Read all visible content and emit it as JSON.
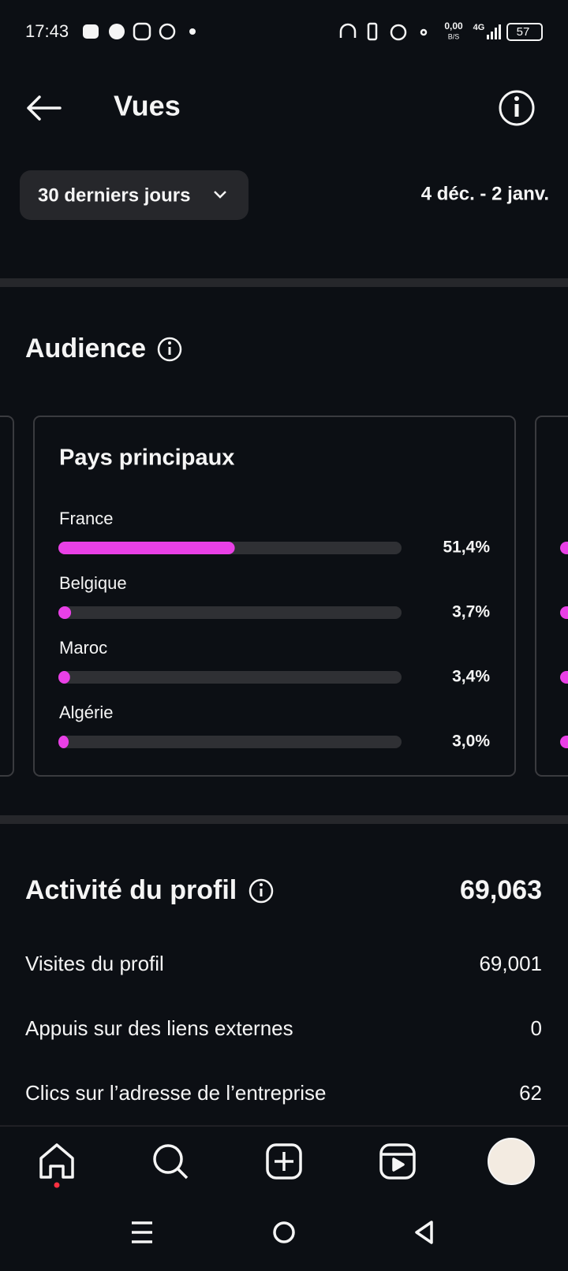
{
  "status_bar": {
    "time": "17:43",
    "net_speed": "0,00",
    "net_unit": "B/S",
    "network": "4G",
    "battery": "57"
  },
  "header": {
    "title": "Vues"
  },
  "filter": {
    "range": "30 derniers jours",
    "dates": "4 déc. - 2 janv."
  },
  "audience": {
    "title": "Audience",
    "card": {
      "title": "Pays principaux",
      "rows": [
        {
          "label": "France",
          "value": 51.4,
          "value_label": "51,4%"
        },
        {
          "label": "Belgique",
          "value": 3.7,
          "value_label": "3,7%"
        },
        {
          "label": "Maroc",
          "value": 3.4,
          "value_label": "3,4%"
        },
        {
          "label": "Algérie",
          "value": 3.0,
          "value_label": "3,0%"
        }
      ]
    }
  },
  "profile_activity": {
    "title": "Activité du profil",
    "total": "69,063",
    "rows": [
      {
        "label": "Visites du profil",
        "value": "69,001"
      },
      {
        "label": "Appuis sur des liens externes",
        "value": "0"
      },
      {
        "label": "Clics sur l’adresse de l’entreprise",
        "value": "62"
      }
    ]
  }
}
